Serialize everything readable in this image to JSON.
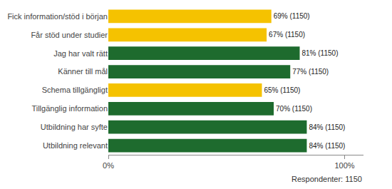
{
  "chart_data": {
    "type": "bar",
    "orientation": "horizontal",
    "categories": [
      "Fick information/stöd i början",
      "Får stöd under studier",
      "Jag har valt rätt",
      "Känner till mål",
      "Schema tillgängligt",
      "Tillgänglig information",
      "Utbildning har syfte",
      "Utbildning relevant"
    ],
    "values": [
      69,
      67,
      81,
      77,
      65,
      70,
      84,
      84
    ],
    "value_labels": [
      "69% (1150)",
      "67% (1150)",
      "81% (1150)",
      "77% (1150)",
      "65% (1150)",
      "70% (1150)",
      "84% (1150)",
      "84% (1150)"
    ],
    "data_labels": true,
    "colors": [
      "#f5c200",
      "#f5c200",
      "#1e6b2e",
      "#1e6b2e",
      "#f5c200",
      "#1e6b2e",
      "#1e6b2e",
      "#1e6b2e"
    ],
    "xlim": [
      0,
      108
    ],
    "xticks": [
      {
        "value": 0,
        "label": "0%"
      },
      {
        "value": 100,
        "label": "100%"
      }
    ],
    "grid": false,
    "annotations": [
      "Respondenter: 1150"
    ]
  }
}
